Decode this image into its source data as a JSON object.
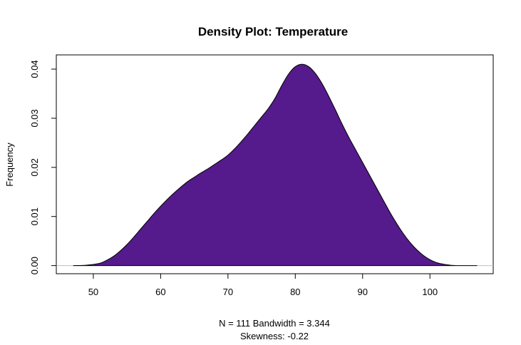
{
  "chart_data": {
    "type": "area",
    "title": "Density Plot: Temperature",
    "xlabel": "N = 111   Bandwidth = 3.344",
    "sublabel": "Skewness: -0.22",
    "ylabel": "Frequency",
    "xlim": [
      44.5,
      109.4
    ],
    "ylim": [
      -0.00165,
      0.0429
    ],
    "x_ticks": [
      50,
      60,
      70,
      80,
      90,
      100
    ],
    "x_tick_labels": [
      "50",
      "60",
      "70",
      "80",
      "90",
      "100"
    ],
    "y_ticks": [
      0.0,
      0.01,
      0.02,
      0.03,
      0.04
    ],
    "y_tick_labels": [
      "0.00",
      "0.01",
      "0.02",
      "0.03",
      "0.04"
    ],
    "fill_color": "#551A8B",
    "zero_line_color": "#BEBEBE",
    "series": [
      {
        "x": [
          47,
          49,
          51,
          52,
          53,
          54,
          55,
          56,
          57,
          58,
          59,
          60,
          61,
          62,
          63,
          64,
          65,
          66,
          67,
          68,
          69,
          70,
          71,
          72,
          73,
          74,
          75,
          76,
          77,
          78,
          79,
          80,
          81,
          82,
          83,
          84,
          85,
          86,
          87,
          88,
          89,
          90,
          91,
          92,
          93,
          94,
          95,
          96,
          97,
          98,
          99,
          100,
          101,
          102,
          103,
          104,
          105,
          107
        ],
        "y": [
          0.0,
          0.0001,
          0.0005,
          0.0011,
          0.0019,
          0.003,
          0.0043,
          0.0058,
          0.0074,
          0.009,
          0.0106,
          0.0121,
          0.0135,
          0.0148,
          0.016,
          0.0171,
          0.018,
          0.0189,
          0.0197,
          0.0206,
          0.0215,
          0.0225,
          0.0238,
          0.0253,
          0.0269,
          0.0286,
          0.0303,
          0.032,
          0.0341,
          0.0367,
          0.039,
          0.0405,
          0.041,
          0.0405,
          0.0391,
          0.037,
          0.0344,
          0.0316,
          0.0287,
          0.026,
          0.0235,
          0.021,
          0.0185,
          0.016,
          0.0135,
          0.011,
          0.0087,
          0.0066,
          0.0048,
          0.0033,
          0.0021,
          0.0012,
          0.0006,
          0.0003,
          0.0001,
          0.0,
          0.0,
          0.0
        ]
      }
    ]
  }
}
